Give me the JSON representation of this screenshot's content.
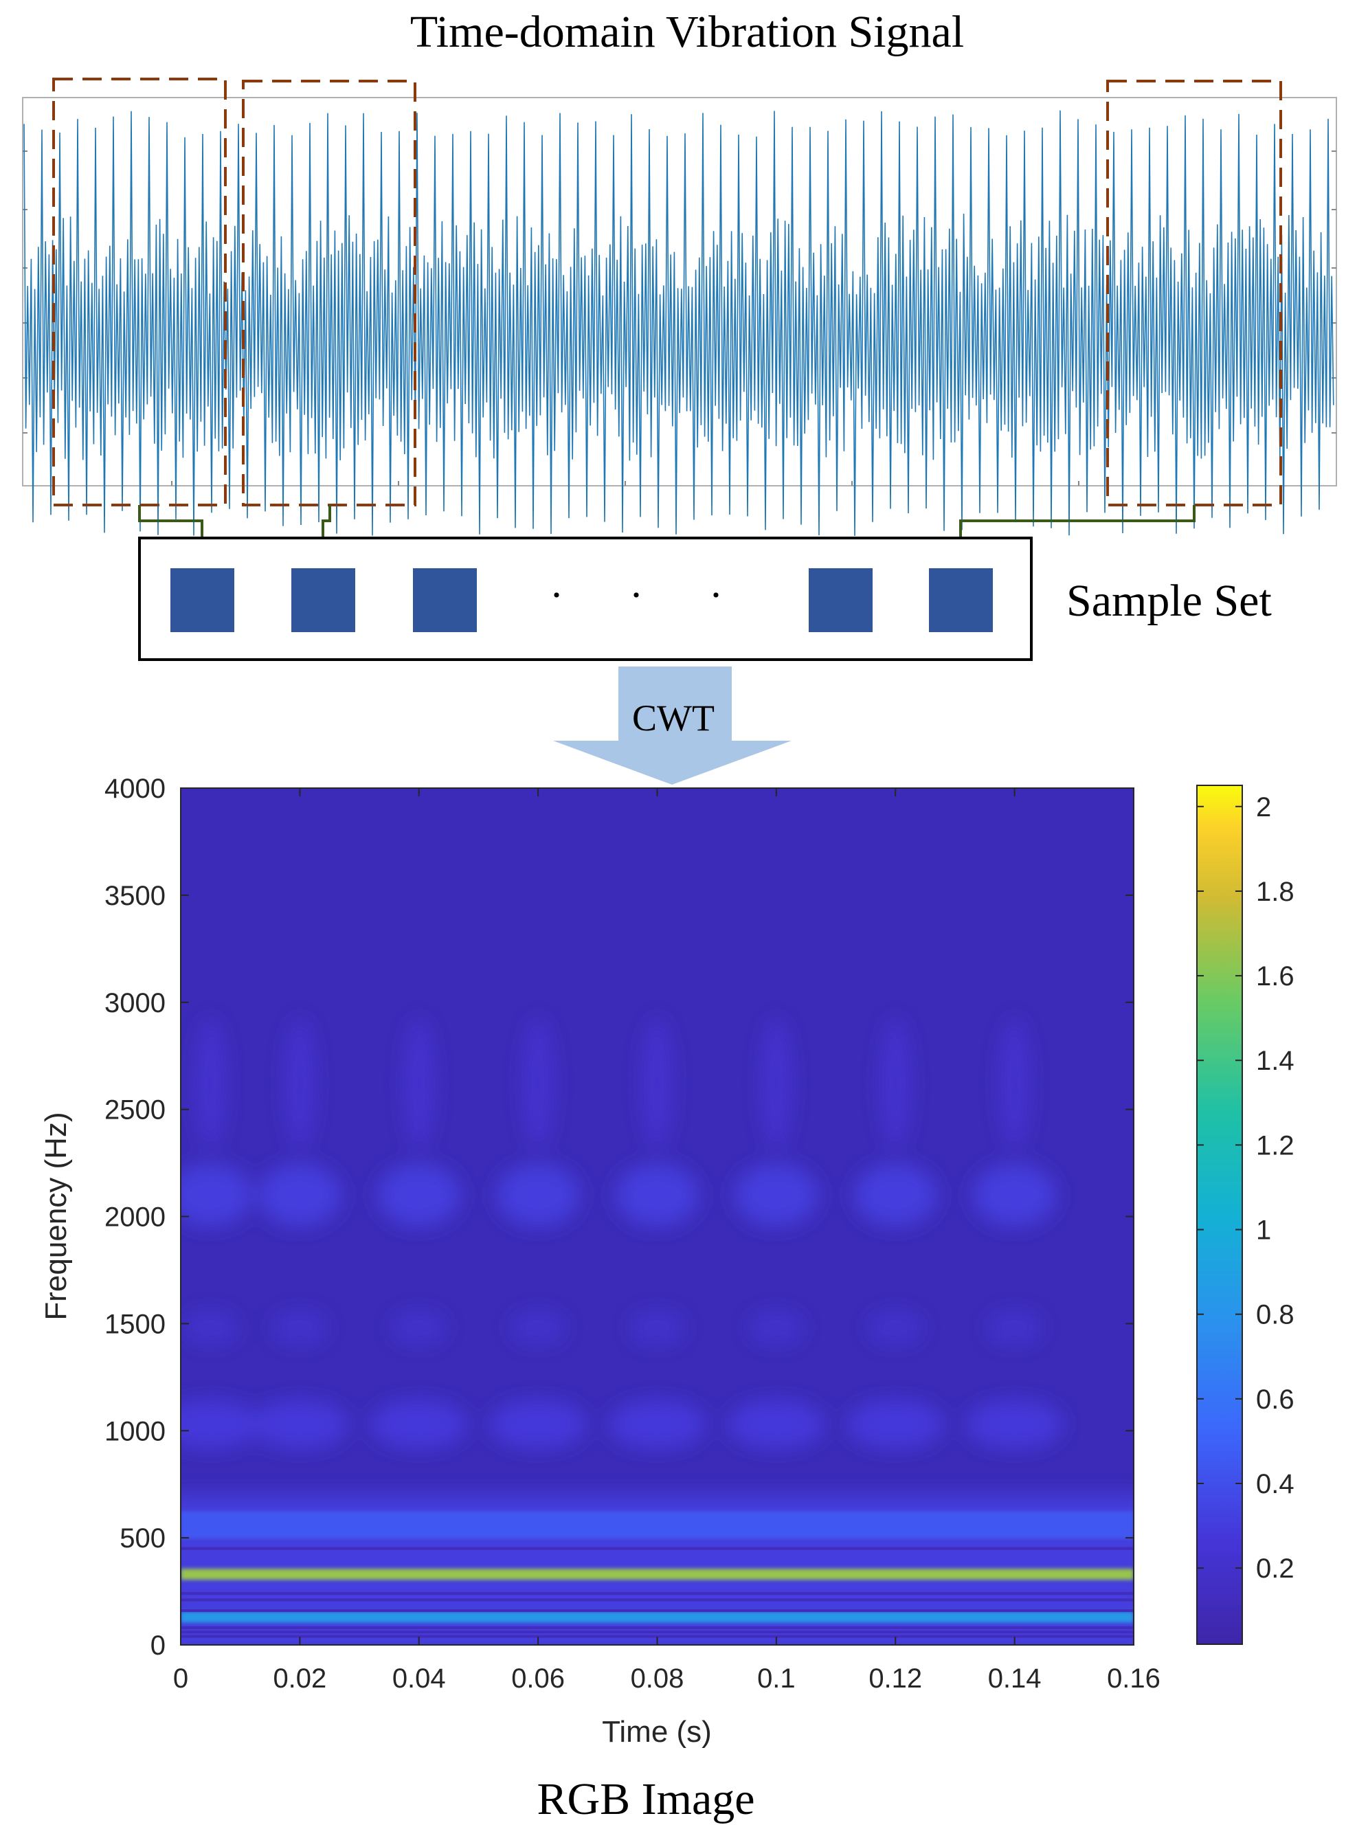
{
  "top_title": "Time-domain Vibration Signal",
  "sample_set_label": "Sample Set",
  "sample_dots": "·",
  "transform_label": "CWT",
  "bottom_caption": "RGB Image",
  "colors": {
    "signal": "#1f77b4",
    "dashed_box": "#8b3a0e",
    "connector": "#3a5a1a",
    "sample_square": "#30559b",
    "arrow": "#a9c6e6",
    "background_scalogram": "#3b2bb8"
  },
  "chart_data": {
    "type": "heatmap",
    "title": "",
    "xlabel": "Time (s)",
    "ylabel": "Frequency (Hz)",
    "xlim": [
      0,
      0.16
    ],
    "ylim": [
      0,
      4000
    ],
    "xticks": [
      0,
      0.02,
      0.04,
      0.06,
      0.08,
      0.1,
      0.12,
      0.14,
      0.16
    ],
    "xtick_labels": [
      "0",
      "0.02",
      "0.04",
      "0.06",
      "0.08",
      "0.1",
      "0.12",
      "0.14",
      "0.16"
    ],
    "yticks": [
      0,
      500,
      1000,
      1500,
      2000,
      2500,
      3000,
      3500,
      4000
    ],
    "ytick_labels": [
      "0",
      "500",
      "1000",
      "1500",
      "2000",
      "2500",
      "3000",
      "3500",
      "4000"
    ],
    "colorbar": {
      "range": [
        0.02,
        2.05
      ],
      "ticks": [
        0.2,
        0.4,
        0.6,
        0.8,
        1,
        1.2,
        1.4,
        1.6,
        1.8,
        2
      ],
      "tick_labels": [
        "0.2",
        "0.4",
        "0.6",
        "0.8",
        "1",
        "1.2",
        "1.4",
        "1.6",
        "1.8",
        "2"
      ]
    },
    "bands": [
      {
        "frequency_hz": 330,
        "magnitude": 1.65
      },
      {
        "frequency_hz": 130,
        "magnitude": 0.85
      },
      {
        "frequency_hz": 560,
        "magnitude": 0.45
      },
      {
        "frequency_hz": 1000,
        "magnitude": 0.28
      },
      {
        "frequency_hz": 2100,
        "magnitude": 0.3
      },
      {
        "frequency_hz": 2600,
        "magnitude": 0.22
      }
    ],
    "burst_times_s": [
      0.005,
      0.02,
      0.04,
      0.06,
      0.08,
      0.1,
      0.12,
      0.14
    ]
  }
}
